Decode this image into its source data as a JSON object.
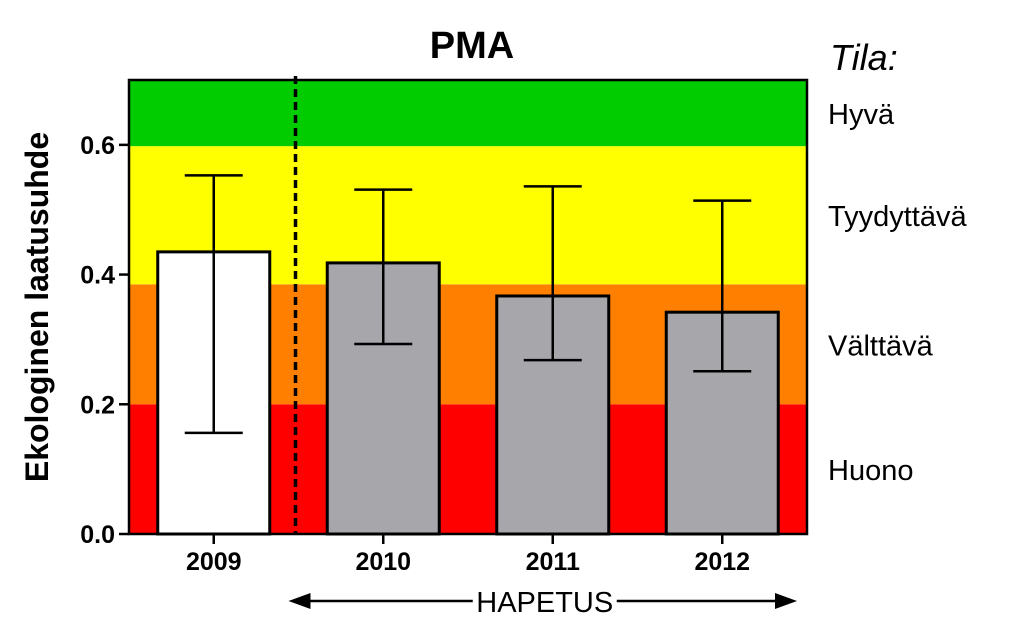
{
  "chart_data": {
    "type": "bar",
    "title": "PMA",
    "ylabel": "Ekologinen laatusuhde",
    "xlabel": "",
    "ylim": [
      0,
      0.7
    ],
    "yticks": [
      0.0,
      0.2,
      0.4,
      0.6
    ],
    "ytick_labels": [
      "0.0",
      "0.2",
      "0.4",
      "0.6"
    ],
    "categories": [
      "2009",
      "2010",
      "2011",
      "2012"
    ],
    "values": [
      0.435,
      0.418,
      0.367,
      0.342
    ],
    "error_low": [
      0.156,
      0.293,
      0.268,
      0.251
    ],
    "error_high": [
      0.553,
      0.531,
      0.536,
      0.514
    ],
    "bar_colors": [
      "#ffffff",
      "#a6a6ab",
      "#a6a6ab",
      "#a6a6ab"
    ],
    "divider_after_category": "2009",
    "bands": [
      {
        "label": "Huono",
        "from": 0.0,
        "to": 0.2,
        "color": "#ff0000"
      },
      {
        "label": "Välttävä",
        "from": 0.2,
        "to": 0.385,
        "color": "#ff8000"
      },
      {
        "label": "Tyydyttävä",
        "from": 0.385,
        "to": 0.598,
        "color": "#ffff00"
      },
      {
        "label": "Hyvä",
        "from": 0.598,
        "to": 0.7,
        "color": "#00cc00"
      }
    ],
    "legend_title": "Tila:",
    "legend_placement": "right",
    "annotation": {
      "text": "HAPETUS",
      "span_categories": [
        "2010",
        "2012"
      ]
    },
    "grid": false
  }
}
